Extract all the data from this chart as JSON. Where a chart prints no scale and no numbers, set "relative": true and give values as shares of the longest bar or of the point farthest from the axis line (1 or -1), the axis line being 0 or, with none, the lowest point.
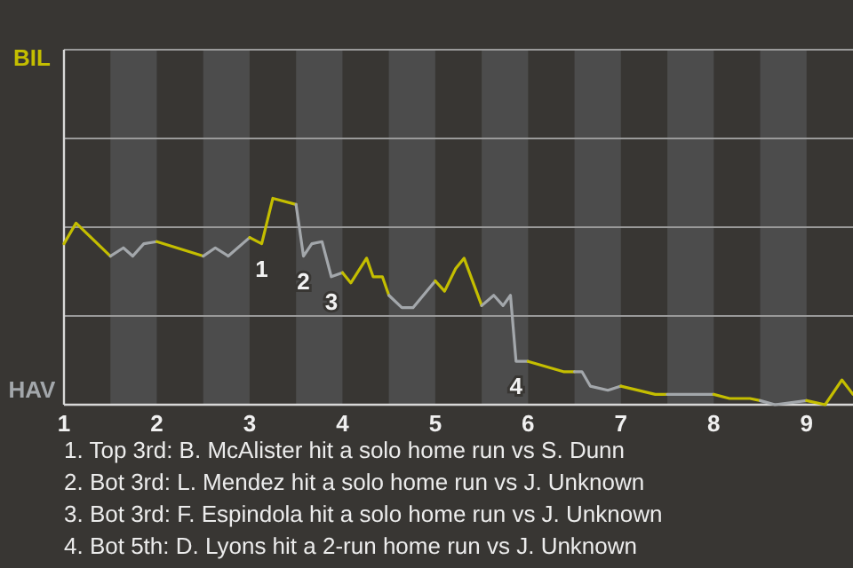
{
  "chart_data": {
    "type": "line",
    "relative": true,
    "xlim": [
      1,
      9.5
    ],
    "xticks": [
      {
        "value": 1,
        "label": "1"
      },
      {
        "value": 2,
        "label": "2"
      },
      {
        "value": 3,
        "label": "3"
      },
      {
        "value": 4,
        "label": "4"
      },
      {
        "value": 5,
        "label": "5"
      },
      {
        "value": 6,
        "label": "6"
      },
      {
        "value": 7,
        "label": "7"
      },
      {
        "value": 8,
        "label": "8"
      },
      {
        "value": 9,
        "label": "9"
      }
    ],
    "ref_lines": [
      {
        "axis": "y",
        "value": 0.43,
        "color": "#9a9a9a"
      },
      {
        "axis": "y",
        "value": 0.86,
        "color": "#9a9a9a"
      },
      {
        "axis": "y",
        "value": 1.29,
        "color": "#9a9a9a"
      },
      {
        "axis": "y",
        "value": 1.72,
        "color": "#9a9a9a"
      }
    ],
    "series": [
      {
        "color": "#c4be00",
        "x": [
          1,
          1.13,
          1.5
        ],
        "values": [
          0.78,
          0.88,
          0.72
        ]
      },
      {
        "color": "#a3a7ab",
        "x": [
          1.5,
          1.64,
          1.74,
          1.86,
          2
        ],
        "values": [
          0.72,
          0.76,
          0.72,
          0.78,
          0.79
        ]
      },
      {
        "color": "#c4be00",
        "x": [
          2,
          2.5
        ],
        "values": [
          0.79,
          0.72
        ]
      },
      {
        "color": "#a3a7ab",
        "x": [
          2.5,
          2.63,
          2.77,
          3
        ],
        "values": [
          0.72,
          0.76,
          0.72,
          0.81
        ]
      },
      {
        "color": "#c4be00",
        "x": [
          3,
          3.13,
          3.25,
          3.5
        ],
        "values": [
          0.81,
          0.78,
          1,
          0.97
        ]
      },
      {
        "color": "#a3a7ab",
        "x": [
          3.5,
          3.58,
          3.67,
          3.78,
          3.88,
          4
        ],
        "values": [
          0.97,
          0.72,
          0.78,
          0.79,
          0.62,
          0.64
        ]
      },
      {
        "color": "#c4be00",
        "x": [
          4,
          4.09,
          4.26,
          4.33,
          4.43,
          4.5
        ],
        "values": [
          0.64,
          0.59,
          0.71,
          0.62,
          0.62,
          0.53
        ]
      },
      {
        "color": "#a3a7ab",
        "x": [
          4.5,
          4.64,
          4.76,
          5
        ],
        "values": [
          0.53,
          0.47,
          0.47,
          0.6
        ]
      },
      {
        "color": "#c4be00",
        "x": [
          5,
          5.1,
          5.22,
          5.31,
          5.5
        ],
        "values": [
          0.6,
          0.55,
          0.66,
          0.71,
          0.48
        ]
      },
      {
        "color": "#a3a7ab",
        "x": [
          5.5,
          5.63,
          5.73,
          5.81,
          5.87,
          6
        ],
        "values": [
          0.48,
          0.53,
          0.48,
          0.53,
          0.21,
          0.21
        ]
      },
      {
        "color": "#c4be00",
        "x": [
          6,
          6.38,
          6.5
        ],
        "values": [
          0.21,
          0.16,
          0.16
        ]
      },
      {
        "color": "#a3a7ab",
        "x": [
          6.5,
          6.58,
          6.67,
          6.86,
          7
        ],
        "values": [
          0.16,
          0.16,
          0.09,
          0.07,
          0.09
        ]
      },
      {
        "color": "#c4be00",
        "x": [
          7,
          7.37,
          7.5
        ],
        "values": [
          0.09,
          0.05,
          0.05
        ]
      },
      {
        "color": "#a3a7ab",
        "x": [
          7.5,
          7.68,
          7.82,
          8
        ],
        "values": [
          0.05,
          0.05,
          0.05,
          0.05
        ]
      },
      {
        "color": "#c4be00",
        "x": [
          8,
          8.17,
          8.39,
          8.5
        ],
        "values": [
          0.05,
          0.03,
          0.03,
          0.02
        ]
      },
      {
        "color": "#a3a7ab",
        "x": [
          8.5,
          8.66,
          9
        ],
        "values": [
          0.02,
          0,
          0.02
        ]
      },
      {
        "color": "#c4be00",
        "x": [
          9,
          9.2,
          9.38,
          9.5
        ],
        "values": [
          0.02,
          0,
          0.12,
          0.05
        ]
      }
    ],
    "bands": [
      {
        "axis": "x",
        "from": 1.5,
        "to": 2,
        "color": "#4c4c4c"
      },
      {
        "axis": "x",
        "from": 2.5,
        "to": 3,
        "color": "#4c4c4c"
      },
      {
        "axis": "x",
        "from": 3.5,
        "to": 4,
        "color": "#4c4c4c"
      },
      {
        "axis": "x",
        "from": 4.5,
        "to": 5,
        "color": "#4c4c4c"
      },
      {
        "axis": "x",
        "from": 5.5,
        "to": 6,
        "color": "#4c4c4c"
      },
      {
        "axis": "x",
        "from": 6.5,
        "to": 7,
        "color": "#4c4c4c"
      },
      {
        "axis": "x",
        "from": 7.5,
        "to": 8,
        "color": "#4c4c4c"
      },
      {
        "axis": "x",
        "from": 8.5,
        "to": 9,
        "color": "#4c4c4c"
      }
    ],
    "annotations": [
      "BIL",
      "HAV",
      {
        "text": "1",
        "x": 3.13,
        "y": 0.78
      },
      {
        "text": "2",
        "x": 3.58,
        "y": 0.72
      },
      {
        "text": "3",
        "x": 3.88,
        "y": 0.62
      },
      {
        "text": "4",
        "x": 5.87,
        "y": 0.21
      },
      "1. Top 3rd: B. McAlister hit a solo home run vs S. Dunn",
      "2. Bot 3rd: L. Mendez hit a solo home run vs J. Unknown",
      "3. Bot 3rd: F. Espindola hit a solo home run vs J. Unknown",
      "4. Bot 5th: D. Lyons hit a 2-run home run vs J. Unknown"
    ]
  }
}
